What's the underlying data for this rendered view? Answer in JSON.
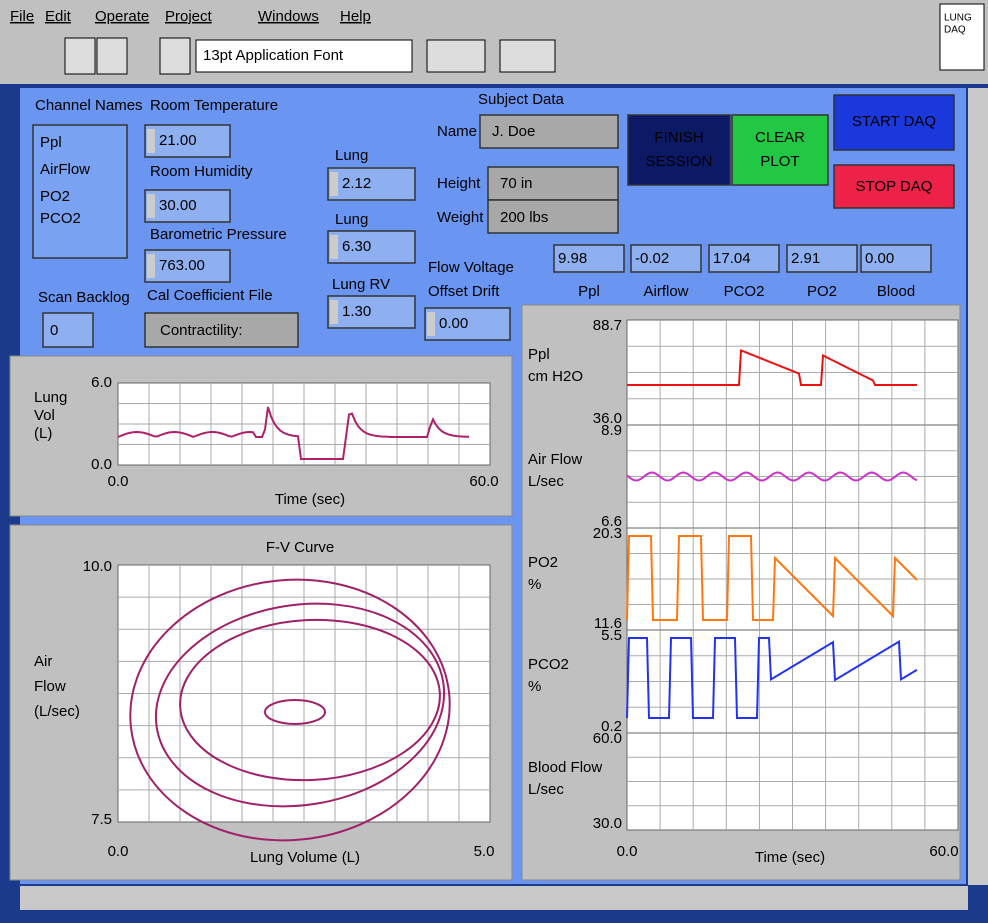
{
  "menu": [
    "File",
    "Edit",
    "Operate",
    "Project",
    "Windows",
    "Help"
  ],
  "toolbar": {
    "font": "13pt Application Font"
  },
  "logo": [
    "LUNG",
    "DAQ"
  ],
  "channels": {
    "label": "Channel Names",
    "items": [
      "Ppl",
      "AirFlow",
      "PO2",
      "PCO2"
    ]
  },
  "room_temperature": {
    "label": "Room Temperature",
    "value": "21.00"
  },
  "room_humidity": {
    "label": "Room Humidity",
    "value": "30.00"
  },
  "barometric_pressure": {
    "label": "Barometric Pressure",
    "value": "763.00"
  },
  "cal_file": {
    "label": "Cal Coefficient File",
    "value": "Contractility:"
  },
  "scan_backlog": {
    "label": "Scan Backlog",
    "value": "0"
  },
  "lung_1": {
    "label": "Lung",
    "value": "2.12"
  },
  "lung_2": {
    "label": "Lung",
    "value": "6.30"
  },
  "lung_rv": {
    "label": "Lung RV",
    "value": "1.30"
  },
  "flow_offset": {
    "label": [
      "Flow Voltage",
      "Offset Drift"
    ],
    "value": "0.00"
  },
  "subject": {
    "title": "Subject Data",
    "name_label": "Name",
    "name": "J. Doe",
    "height_label": "Height",
    "height": "70 in",
    "weight_label": "Weight",
    "weight": "200 lbs"
  },
  "buttons": {
    "finish": [
      "FINISH",
      "SESSION"
    ],
    "clear": [
      "CLEAR",
      "PLOT"
    ],
    "start": "START DAQ",
    "stop": "STOP DAQ"
  },
  "readouts": {
    "values": [
      "9.98",
      "-0.02",
      "17.04",
      "2.91",
      "0.00"
    ],
    "labels": [
      "Ppl",
      "Airflow",
      "PCO2",
      "PO2",
      "Blood"
    ]
  },
  "lung_vol_chart": {
    "ylabel": [
      "Lung",
      "Vol",
      "(L)"
    ],
    "yticks": [
      "6.0",
      "0.0"
    ],
    "xticks": [
      "0.0",
      "60.0"
    ],
    "xlabel": "Time (sec)"
  },
  "fv_curve": {
    "title": "F-V Curve",
    "ylabel": [
      "Air",
      "Flow",
      "(L/sec)"
    ],
    "yticks": [
      "10.0",
      "7.5"
    ],
    "xticks": [
      "0.0",
      "5.0"
    ],
    "xlabel": "Lung Volume (L)"
  },
  "strips": {
    "channels": [
      {
        "label": [
          "Ppl",
          "cm H2O"
        ],
        "max": "88.7",
        "min": "36.0",
        "color": "#ee1111"
      },
      {
        "label": [
          "Air Flow",
          "L/sec"
        ],
        "max": "8.9",
        "min": "6.6",
        "color": "#cc33cc"
      },
      {
        "label": [
          "PO2",
          "%"
        ],
        "max": "20.3",
        "min": "11.6",
        "color": "#ff7711"
      },
      {
        "label": [
          "PCO2",
          "%"
        ],
        "max": "5.5",
        "min": "0.2",
        "color": "#2233ee"
      },
      {
        "label": [
          "Blood Flow",
          "L/sec"
        ],
        "max": "60.0",
        "min": "30.0",
        "color": "#222288"
      }
    ],
    "xticks": [
      "0.0",
      "60.0"
    ],
    "xlabel": "Time (sec)"
  }
}
